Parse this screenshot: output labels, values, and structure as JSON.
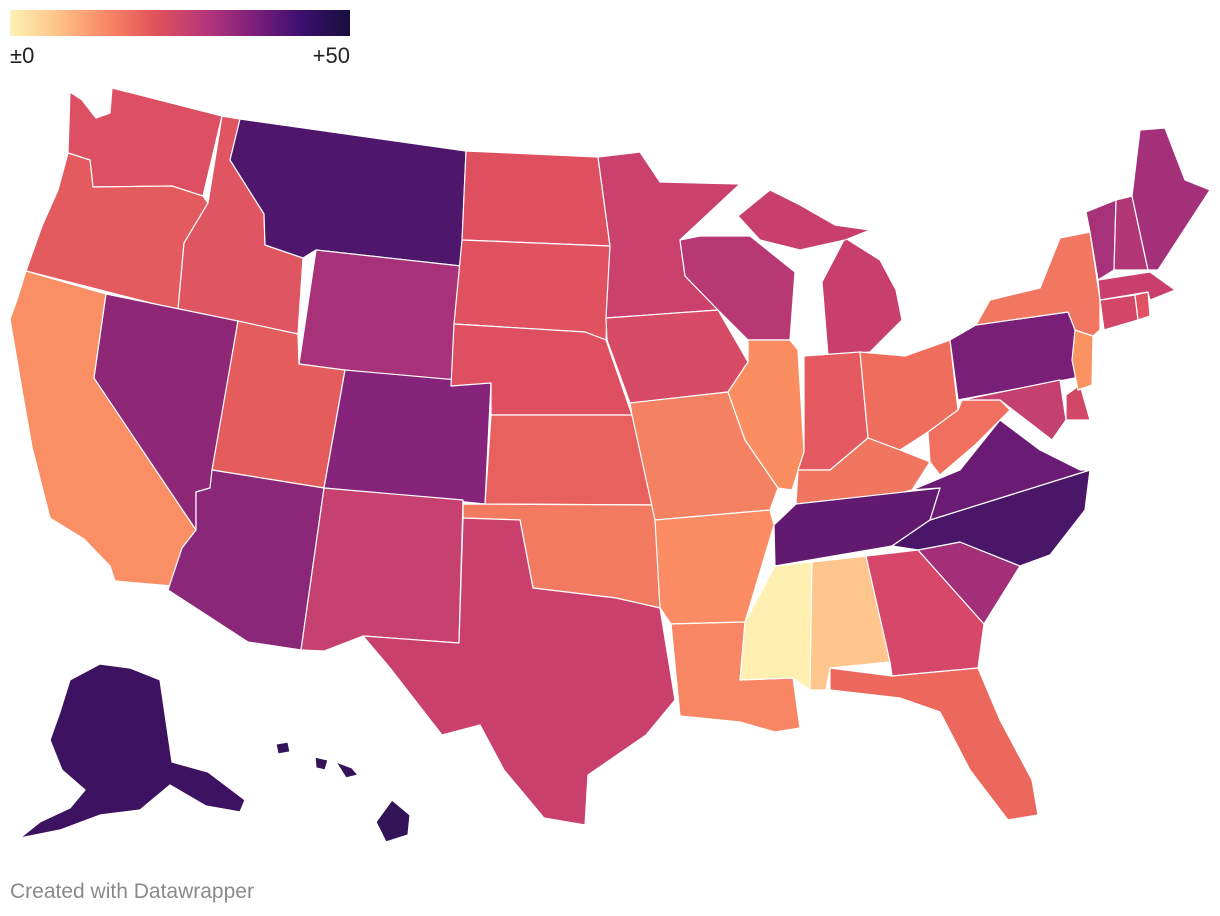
{
  "legend": {
    "min_label": "±0",
    "max_label": "+50",
    "min_value": 0,
    "max_value": 50,
    "colors": [
      "#fcf2b4",
      "#fec287",
      "#fa8765",
      "#e0525a",
      "#b73779",
      "#7f1f7c",
      "#3b0f70",
      "#180f3d"
    ]
  },
  "credit": "Created with Datawrapper",
  "states": [
    {
      "name": "Washington",
      "color": "#dd4f62"
    },
    {
      "name": "Oregon",
      "color": "#e35a5f"
    },
    {
      "name": "California",
      "color": "#fa8e64"
    },
    {
      "name": "Idaho",
      "color": "#e05562"
    },
    {
      "name": "Nevada",
      "color": "#8e2776"
    },
    {
      "name": "Montana",
      "color": "#4e176c"
    },
    {
      "name": "Wyoming",
      "color": "#a8327a"
    },
    {
      "name": "Utah",
      "color": "#e55c5c"
    },
    {
      "name": "Arizona",
      "color": "#8a2778"
    },
    {
      "name": "Colorado",
      "color": "#86237a"
    },
    {
      "name": "New Mexico",
      "color": "#c74170"
    },
    {
      "name": "North Dakota",
      "color": "#de5060"
    },
    {
      "name": "South Dakota",
      "color": "#e0525f"
    },
    {
      "name": "Nebraska",
      "color": "#de4f62"
    },
    {
      "name": "Kansas",
      "color": "#e8615e"
    },
    {
      "name": "Oklahoma",
      "color": "#f27a60"
    },
    {
      "name": "Texas",
      "color": "#c9406d"
    },
    {
      "name": "Minnesota",
      "color": "#c9416c"
    },
    {
      "name": "Iowa",
      "color": "#d84b66"
    },
    {
      "name": "Missouri",
      "color": "#f48162"
    },
    {
      "name": "Arkansas",
      "color": "#fb8c63"
    },
    {
      "name": "Louisiana",
      "color": "#f88563"
    },
    {
      "name": "Wisconsin",
      "color": "#b83873"
    },
    {
      "name": "Illinois",
      "color": "#fb8e60"
    },
    {
      "name": "Michigan",
      "color": "#c83f6d"
    },
    {
      "name": "Indiana",
      "color": "#e55960"
    },
    {
      "name": "Ohio",
      "color": "#ef6d5d"
    },
    {
      "name": "Kentucky",
      "color": "#f17660"
    },
    {
      "name": "Tennessee",
      "color": "#611a70"
    },
    {
      "name": "Mississippi",
      "color": "#fff0b1"
    },
    {
      "name": "Alabama",
      "color": "#fec68c"
    },
    {
      "name": "Georgia",
      "color": "#d6476a"
    },
    {
      "name": "Florida",
      "color": "#ec685d"
    },
    {
      "name": "South Carolina",
      "color": "#a22f78"
    },
    {
      "name": "North Carolina",
      "color": "#491668"
    },
    {
      "name": "Virginia",
      "color": "#6a1b73"
    },
    {
      "name": "West Virginia",
      "color": "#f06f5e"
    },
    {
      "name": "Pennsylvania",
      "color": "#7a1f77"
    },
    {
      "name": "Maryland",
      "color": "#c3406f"
    },
    {
      "name": "Delaware",
      "color": "#d24766"
    },
    {
      "name": "New Jersey",
      "color": "#fb9262"
    },
    {
      "name": "New York",
      "color": "#f17760"
    },
    {
      "name": "Connecticut",
      "color": "#d44667"
    },
    {
      "name": "Rhode Island",
      "color": "#e05262"
    },
    {
      "name": "Massachusetts",
      "color": "#c93e6d"
    },
    {
      "name": "Vermont",
      "color": "#a8327a"
    },
    {
      "name": "New Hampshire",
      "color": "#b33676"
    },
    {
      "name": "Maine",
      "color": "#a4307a"
    },
    {
      "name": "Alaska",
      "color": "#3d1260"
    },
    {
      "name": "Hawaii",
      "color": "#331459"
    }
  ]
}
